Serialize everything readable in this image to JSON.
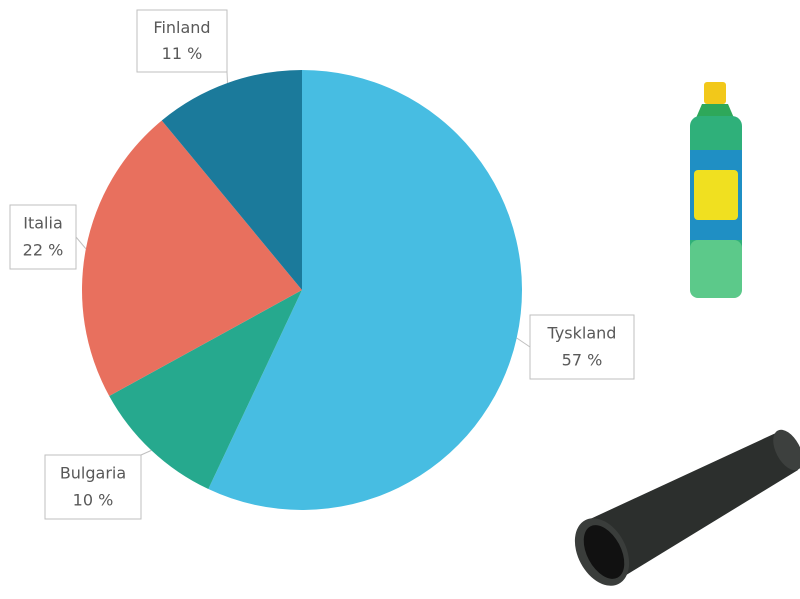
{
  "chart_data": {
    "type": "pie",
    "categories": [
      "Tyskland",
      "Bulgaria",
      "Italia",
      "Finland"
    ],
    "values": [
      57,
      10,
      22,
      11
    ],
    "value_labels": [
      "57 %",
      "10 %",
      "22 %",
      "11 %"
    ],
    "colors": [
      "#47bde2",
      "#26a98e",
      "#e8705e",
      "#1b7a9b"
    ]
  }
}
